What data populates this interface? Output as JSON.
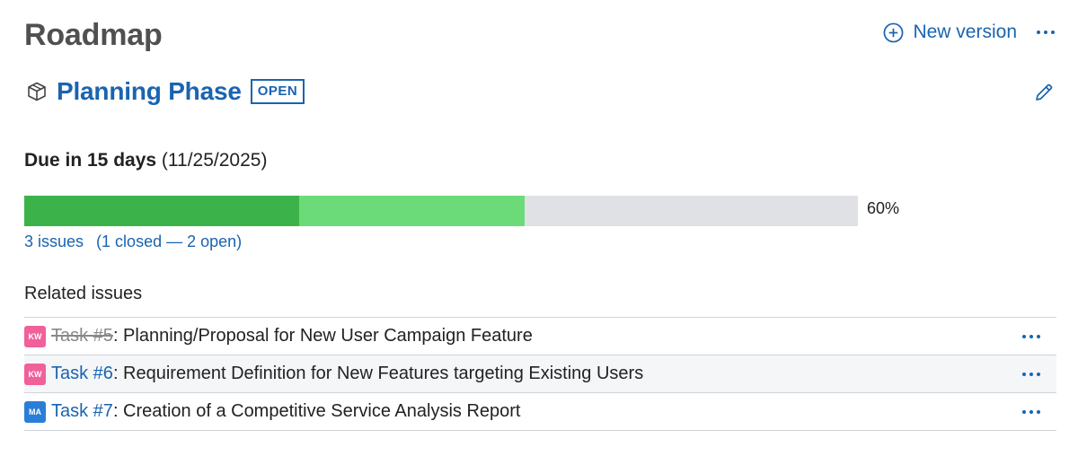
{
  "page": {
    "title": "Roadmap"
  },
  "header": {
    "new_version_label": "New version",
    "accent": "#1a64b0"
  },
  "version": {
    "name": "Planning Phase",
    "status": "OPEN",
    "icon": "package-icon"
  },
  "due": {
    "relative": "Due in 15 days",
    "date": "(11/25/2025)"
  },
  "progress": {
    "closed_fraction": 0.33,
    "done_fraction": 0.6,
    "percent_label": "60%",
    "closed_color": "#3cb34a",
    "open_color": "#6bdb7a",
    "track_color": "#dfe1e5"
  },
  "issues_summary": {
    "total_label": "3 issues",
    "breakdown_label": "(1 closed — 2 open)"
  },
  "related": {
    "heading": "Related issues",
    "items": [
      {
        "avatar": "KW",
        "avatar_color": "#f0609a",
        "key": "Task #5",
        "title": ": Planning/Proposal for New User Campaign Feature",
        "closed": true
      },
      {
        "avatar": "KW",
        "avatar_color": "#f0609a",
        "key": "Task #6",
        "title": ": Requirement Definition for New Features targeting Existing Users",
        "closed": false
      },
      {
        "avatar": "MA",
        "avatar_color": "#2a7ed8",
        "key": "Task #7",
        "title": ": Creation of a Competitive Service Analysis Report",
        "closed": false
      }
    ]
  }
}
